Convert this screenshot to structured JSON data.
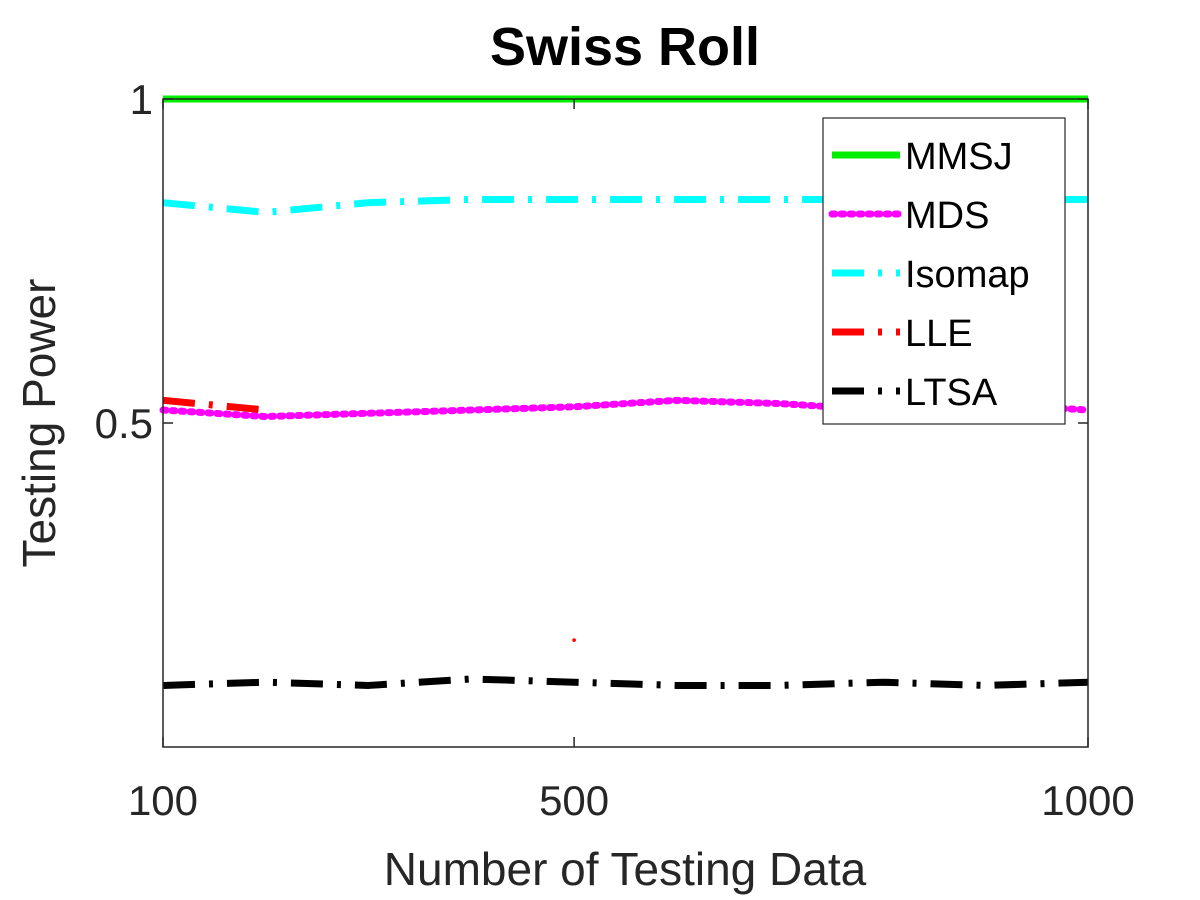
{
  "chart_data": {
    "type": "line",
    "title": "Swiss Roll",
    "xlabel": "Number of Testing Data",
    "ylabel": "Testing Power",
    "x": [
      100,
      200,
      300,
      400,
      500,
      600,
      700,
      800,
      900,
      1000
    ],
    "xticks": [
      100,
      500,
      1000
    ],
    "xtick_labels": [
      "100",
      "500",
      "1000"
    ],
    "yticks": [
      0.5,
      1
    ],
    "ytick_labels": [
      "0.5",
      "1"
    ],
    "xlim": [
      100,
      1000
    ],
    "ylim": [
      0,
      1
    ],
    "grid": false,
    "legend_position": "top-right",
    "series": [
      {
        "name": "MMSJ",
        "color": "#00ee00",
        "style": "solid",
        "values": [
          1,
          1,
          1,
          1,
          1,
          1,
          1,
          1,
          1,
          1
        ]
      },
      {
        "name": "MDS",
        "color": "#ff00ff",
        "style": "dotted",
        "values": [
          0.52,
          0.51,
          0.515,
          0.52,
          0.525,
          0.535,
          0.53,
          0.52,
          0.53,
          0.52
        ]
      },
      {
        "name": "Isomap",
        "color": "#00ffff",
        "style": "dashdot",
        "values": [
          0.84,
          0.825,
          0.84,
          0.845,
          0.845,
          0.845,
          0.845,
          0.845,
          0.845,
          0.845
        ]
      },
      {
        "name": "LLE",
        "color": "#ff0000",
        "style": "dashdot",
        "values": [
          0.535,
          0.52,
          null,
          null,
          0.165,
          null,
          null,
          null,
          null,
          null
        ]
      },
      {
        "name": "LTSA",
        "color": "#000000",
        "style": "dashdot",
        "values": [
          0.095,
          0.1,
          0.095,
          0.105,
          0.1,
          0.095,
          0.095,
          0.1,
          0.095,
          0.1
        ]
      }
    ]
  }
}
